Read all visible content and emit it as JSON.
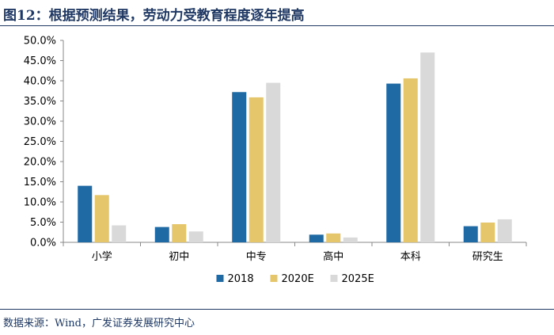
{
  "header": {
    "title": "图12：根据预测结果，劳动力受教育程度逐年提高"
  },
  "footer": {
    "source": "数据来源：Wind，广发证券发展研究中心"
  },
  "chart_data": {
    "type": "bar",
    "title": "",
    "xlabel": "",
    "ylabel": "",
    "categories": [
      "小学",
      "初中",
      "中专",
      "高中",
      "本科",
      "研究生"
    ],
    "series": [
      {
        "name": "2018",
        "color": "#1f6aa5",
        "values": [
          14.0,
          3.8,
          37.2,
          1.9,
          39.3,
          4.0
        ]
      },
      {
        "name": "2020E",
        "color": "#e6c66b",
        "values": [
          11.7,
          4.5,
          35.9,
          2.2,
          40.6,
          4.9
        ]
      },
      {
        "name": "2025E",
        "color": "#d9d9d9",
        "values": [
          4.2,
          2.7,
          39.5,
          1.2,
          47.0,
          5.7
        ]
      }
    ],
    "ylim": [
      0,
      50
    ],
    "yticks": [
      "0.0%",
      "5.0%",
      "10.0%",
      "15.0%",
      "20.0%",
      "25.0%",
      "30.0%",
      "35.0%",
      "40.0%",
      "45.0%",
      "50.0%"
    ],
    "grid": false,
    "legend_position": "bottom"
  }
}
